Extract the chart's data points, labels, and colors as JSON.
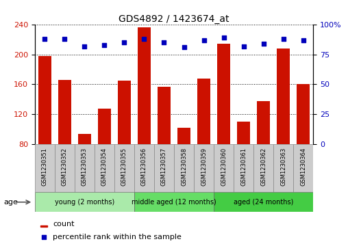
{
  "title": "GDS4892 / 1423674_at",
  "samples": [
    "GSM1230351",
    "GSM1230352",
    "GSM1230353",
    "GSM1230354",
    "GSM1230355",
    "GSM1230356",
    "GSM1230357",
    "GSM1230358",
    "GSM1230359",
    "GSM1230360",
    "GSM1230361",
    "GSM1230362",
    "GSM1230363",
    "GSM1230364"
  ],
  "counts": [
    198,
    166,
    93,
    127,
    165,
    237,
    157,
    102,
    168,
    215,
    110,
    137,
    208,
    160
  ],
  "percentiles": [
    88,
    88,
    82,
    83,
    85,
    88,
    85,
    81,
    87,
    89,
    82,
    84,
    88,
    87
  ],
  "ylim_left": [
    80,
    240
  ],
  "ylim_right": [
    0,
    100
  ],
  "yticks_left": [
    80,
    120,
    160,
    200,
    240
  ],
  "yticks_right": [
    0,
    25,
    50,
    75,
    100
  ],
  "ytick_right_labels": [
    "0",
    "25",
    "50",
    "75",
    "100%"
  ],
  "groups": [
    {
      "label": "young (2 months)",
      "start": 0,
      "end": 5,
      "color": "#AAEAAA"
    },
    {
      "label": "middle aged (12 months)",
      "start": 5,
      "end": 9,
      "color": "#66DD66"
    },
    {
      "label": "aged (24 months)",
      "start": 9,
      "end": 14,
      "color": "#44CC44"
    }
  ],
  "bar_color": "#CC1100",
  "dot_color": "#0000BB",
  "sample_bg": "#CCCCCC",
  "age_label": "age",
  "legend_count": "count",
  "legend_percentile": "percentile rank within the sample",
  "title_fontsize": 10,
  "axis_fontsize": 8,
  "label_fontsize": 6,
  "group_fontsize": 7,
  "legend_fontsize": 8
}
